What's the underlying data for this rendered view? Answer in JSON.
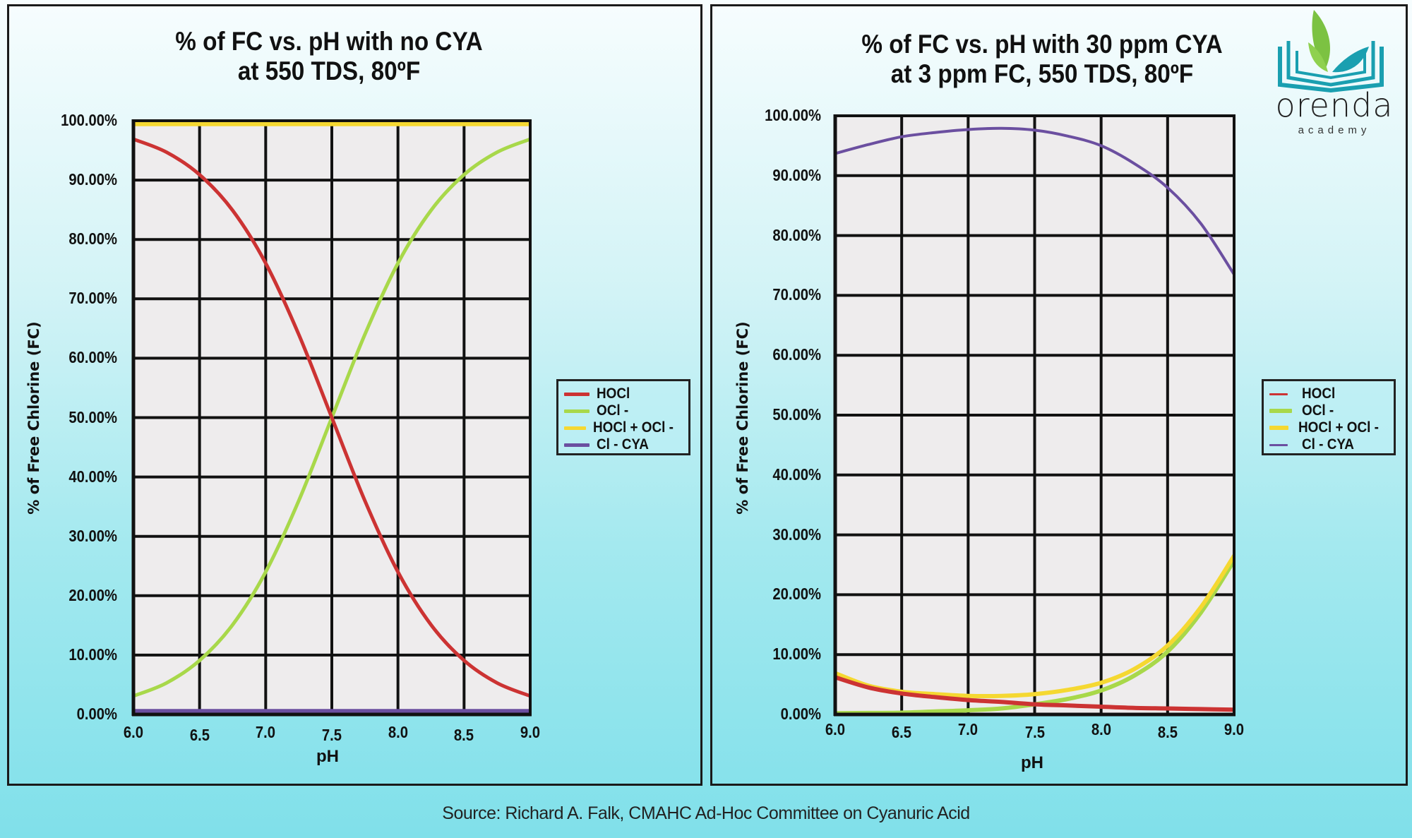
{
  "source": "Source:  Richard A. Falk, CMAHC Ad-Hoc Committee on Cyanuric Acid",
  "logo": {
    "name": "orenda",
    "sub": "academy",
    "colors": {
      "leaf": "#7cc242",
      "teal": "#1a9fb0"
    }
  },
  "chart_data": [
    {
      "type": "line",
      "title_lines": [
        "% of FC vs. pH with no CYA",
        "at 550 TDS, 80ºF"
      ],
      "xlabel": "pH",
      "ylabel": "% of Free Chlorine (FC)",
      "xlim": [
        6.0,
        9.0
      ],
      "ylim": [
        0,
        100
      ],
      "xticks": [
        "6.0",
        "6.5",
        "7.0",
        "7.5",
        "8.0",
        "8.5",
        "9.0"
      ],
      "yticks": [
        "0.00%",
        "10.00%",
        "20.00%",
        "30.00%",
        "40.00%",
        "50.00%",
        "60.00%",
        "70.00%",
        "80.00%",
        "90.00%",
        "100.00%"
      ],
      "grid": true,
      "legend_position": "right",
      "x": [
        6.0,
        6.25,
        6.5,
        6.75,
        7.0,
        7.25,
        7.5,
        7.75,
        8.0,
        8.25,
        8.5,
        8.75,
        9.0
      ],
      "series": [
        {
          "name": "HOCl",
          "color": "#cc3333",
          "values": [
            96.9,
            94.7,
            90.9,
            84.9,
            76.0,
            64.0,
            50.0,
            36.0,
            24.0,
            15.1,
            9.1,
            5.3,
            3.1
          ]
        },
        {
          "name": "OCl -",
          "color": "#a8d84a",
          "values": [
            3.1,
            5.3,
            9.1,
            15.1,
            24.0,
            36.0,
            50.0,
            64.0,
            76.0,
            84.9,
            90.9,
            94.7,
            96.9
          ]
        },
        {
          "name": "HOCl + OCl -",
          "color": "#f5d831",
          "values": [
            99.5,
            99.5,
            99.5,
            99.5,
            99.5,
            99.5,
            99.5,
            99.5,
            99.5,
            99.5,
            99.5,
            99.5,
            99.5
          ]
        },
        {
          "name": "Cl - CYA",
          "color": "#6b4fa0",
          "values": [
            0.5,
            0.5,
            0.5,
            0.5,
            0.5,
            0.5,
            0.5,
            0.5,
            0.5,
            0.5,
            0.5,
            0.5,
            0.5
          ]
        }
      ]
    },
    {
      "type": "line",
      "title_lines": [
        "% of FC vs. pH with 30 ppm CYA",
        "at 3 ppm FC, 550 TDS, 80ºF"
      ],
      "xlabel": "pH",
      "ylabel": "% of  Free Chlorine (FC)",
      "xlim": [
        6.0,
        9.0
      ],
      "ylim": [
        0,
        100
      ],
      "xticks": [
        "6.0",
        "6.5",
        "7.0",
        "7.5",
        "8.0",
        "8.5",
        "9.0"
      ],
      "yticks": [
        "0.00%",
        "10.00%",
        "20.00%",
        "30.00%",
        "40.00%",
        "50.00%",
        "60.00%",
        "70.00%",
        "80.00%",
        "90.00%",
        "100.00%"
      ],
      "grid": true,
      "legend_position": "right",
      "x": [
        6.0,
        6.25,
        6.5,
        6.75,
        7.0,
        7.25,
        7.5,
        7.75,
        8.0,
        8.25,
        8.5,
        8.75,
        9.0
      ],
      "series": [
        {
          "name": "HOCl",
          "color": "#cc3333",
          "values": [
            6.2,
            4.5,
            3.5,
            2.9,
            2.4,
            2.1,
            1.7,
            1.5,
            1.3,
            1.1,
            1.0,
            0.9,
            0.8
          ]
        },
        {
          "name": "OCl -",
          "color": "#a8d84a",
          "values": [
            0.2,
            0.25,
            0.3,
            0.5,
            0.7,
            1.0,
            1.7,
            2.6,
            4.0,
            6.5,
            10.5,
            17.0,
            25.7
          ]
        },
        {
          "name": "HOCl + OCl -",
          "color": "#f5d831",
          "values": [
            6.9,
            4.8,
            3.8,
            3.4,
            3.1,
            3.1,
            3.4,
            4.1,
            5.3,
            7.6,
            11.5,
            17.9,
            26.5
          ]
        },
        {
          "name": "Cl - CYA",
          "color": "#6b4fa0",
          "values": [
            93.7,
            95.2,
            96.5,
            97.2,
            97.7,
            97.9,
            97.6,
            96.6,
            95.0,
            92.0,
            88.0,
            82.0,
            73.5
          ]
        }
      ]
    }
  ]
}
